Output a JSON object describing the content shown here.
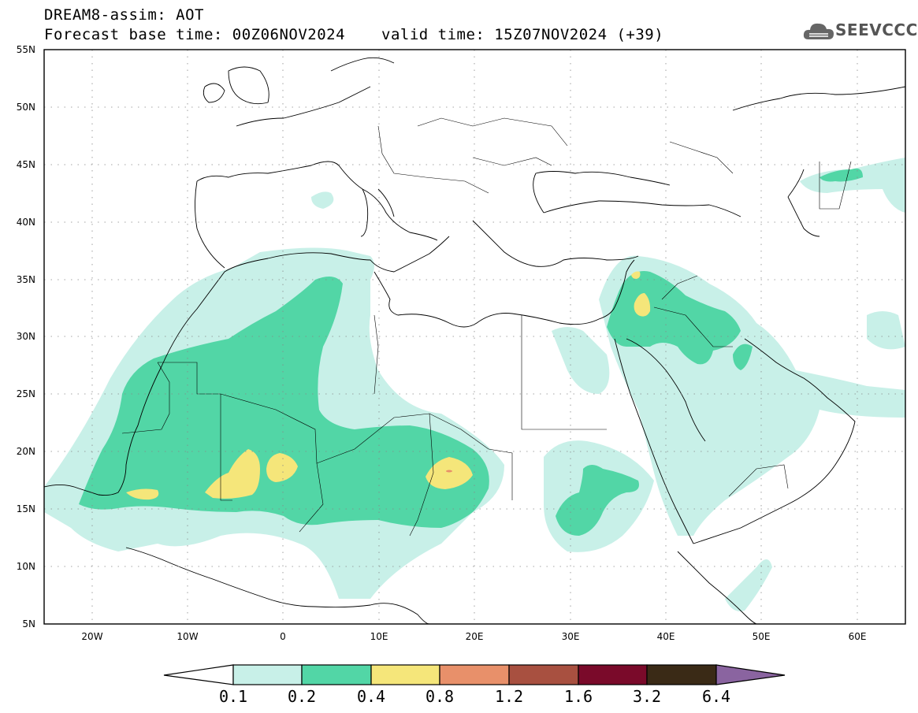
{
  "header": {
    "title": "DREAM8-assim: AOT",
    "base_time": "Forecast base time: 00Z06NOV2024",
    "valid_time": "valid time: 15Z07NOV2024 (+39)",
    "logo_text": "SEEVCCC"
  },
  "map": {
    "lon_range": [
      -25,
      65
    ],
    "lat_range": [
      5,
      55
    ],
    "lat_labels": [
      "55N",
      "50N",
      "45N",
      "40N",
      "35N",
      "30N",
      "25N",
      "20N",
      "15N",
      "10N",
      "5N"
    ],
    "lat_values": [
      55,
      50,
      45,
      40,
      35,
      30,
      25,
      20,
      15,
      10,
      5
    ],
    "lon_labels": [
      "20W",
      "10W",
      "0",
      "10E",
      "20E",
      "30E",
      "40E",
      "50E",
      "60E"
    ],
    "lon_values": [
      -20,
      -10,
      0,
      10,
      20,
      30,
      40,
      50,
      60
    ],
    "grid": "dotted"
  },
  "colorbar": {
    "levels": [
      "0.1",
      "0.2",
      "0.4",
      "0.8",
      "1.2",
      "1.6",
      "3.2",
      "6.4"
    ],
    "colors": [
      "#c8f0e8",
      "#52d6a6",
      "#f5e67a",
      "#e8906a",
      "#a85040",
      "#7a0a2a",
      "#3a2a16",
      "#8a64a0"
    ]
  }
}
